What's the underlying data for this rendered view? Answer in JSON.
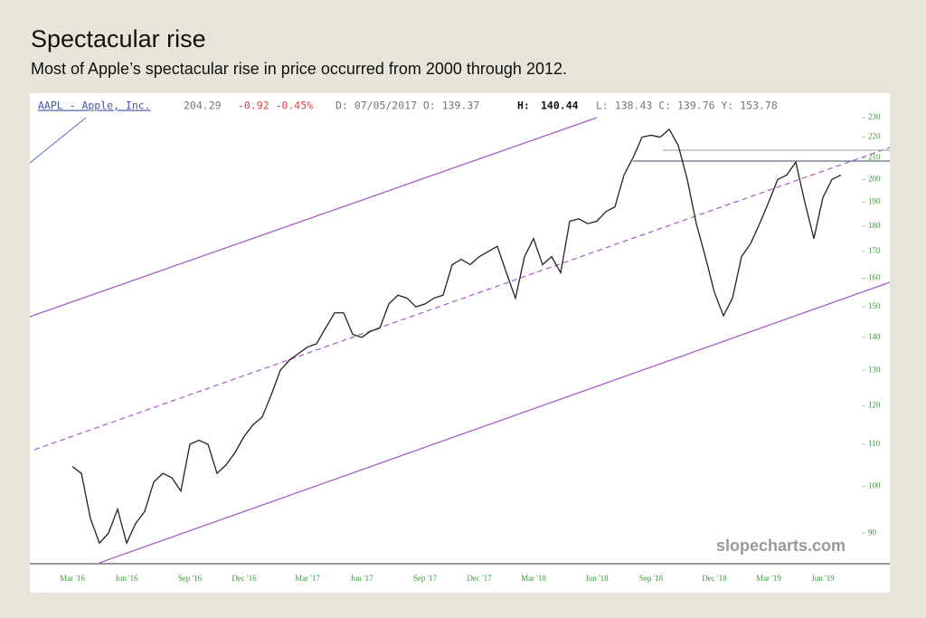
{
  "chart_data": {
    "type": "line",
    "title": "Spectacular rise",
    "subtitle": "Most of Apple’s spectacular rise in price occurred from 2000 through 2012.",
    "header": {
      "symbol": "AAPL - Apple, Inc.",
      "last": "204.29",
      "change": "-0.92 -0.45%",
      "date": "D: 07/05/2017 O: 139.37",
      "high_label": "H:",
      "high": "140.44",
      "rest": "L: 138.43 C: 139.76 Y: 153.78"
    },
    "watermark": "slopecharts.com",
    "log_scale": true,
    "color": "#222222",
    "ylim": [
      84,
      243
    ],
    "yticks": [
      90,
      100,
      110,
      120,
      130,
      140,
      150,
      160,
      170,
      180,
      190,
      200,
      210,
      220,
      230
    ],
    "categories": [
      "Mar '16",
      null,
      null,
      null,
      null,
      null,
      "Jun '16",
      null,
      null,
      null,
      null,
      null,
      null,
      "Sep '16",
      null,
      null,
      null,
      null,
      null,
      "Dec '16",
      null,
      null,
      null,
      null,
      null,
      null,
      "Mar '17",
      null,
      null,
      null,
      null,
      null,
      "Jun '17",
      null,
      null,
      null,
      null,
      null,
      null,
      "Sep '17",
      null,
      null,
      null,
      null,
      null,
      "Dec '17",
      null,
      null,
      null,
      null,
      null,
      "Mar '18",
      null,
      null,
      null,
      null,
      null,
      null,
      "Jun '18",
      null,
      null,
      null,
      null,
      null,
      "Sep '18",
      null,
      null,
      null,
      null,
      null,
      null,
      "Dec '18",
      null,
      null,
      null,
      null,
      null,
      "Mar '19",
      null,
      null,
      null,
      null,
      null,
      "Jun '19",
      null,
      null
    ],
    "values": [
      104.6,
      103,
      93,
      88,
      90,
      95,
      88,
      92,
      94.5,
      101,
      103,
      102,
      99,
      110,
      111,
      110,
      103,
      105,
      108,
      112,
      115,
      117,
      123,
      130,
      133,
      135,
      137,
      138,
      143,
      148,
      148,
      141,
      140,
      142,
      143,
      151,
      154,
      153,
      150,
      151,
      153,
      154,
      165,
      167,
      165,
      168,
      170,
      172,
      162,
      153,
      168,
      175,
      165,
      168,
      162,
      182,
      183,
      181,
      182,
      186,
      188,
      202,
      210,
      220,
      221,
      220,
      224,
      216,
      200,
      181,
      168,
      155,
      147,
      153,
      168,
      173,
      181,
      190,
      200,
      202,
      208,
      190,
      175,
      192,
      200,
      202
    ]
  }
}
